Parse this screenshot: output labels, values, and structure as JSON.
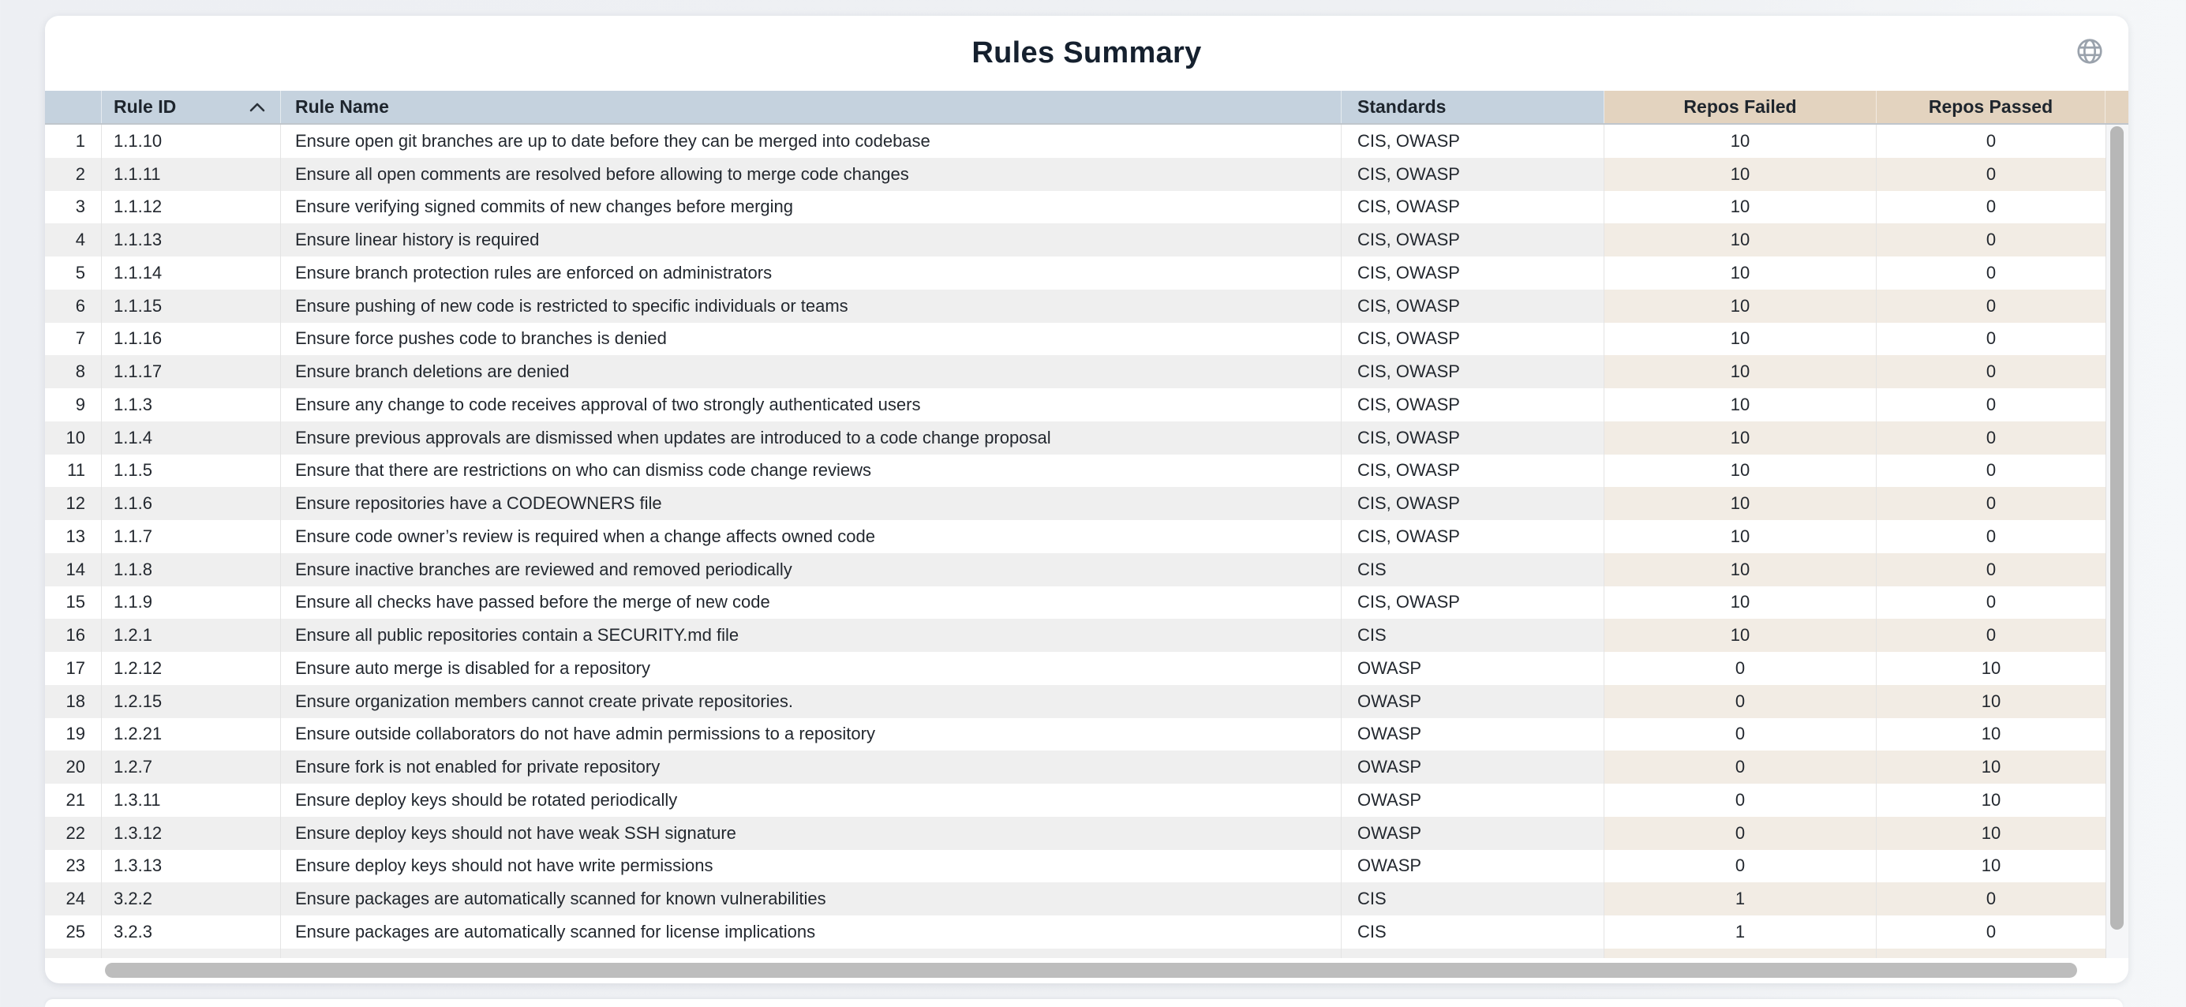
{
  "page": {
    "title": "Rules Summary"
  },
  "icons": {
    "globe": "globe-icon (world/web toggle, gray outline)",
    "sort_ascending": "chevron-up"
  },
  "colors": {
    "header_blue": "#c5d2de",
    "header_tan": "#e3d3bf",
    "stripe_gray": "#efefef",
    "stripe_beige": "#f2ece4",
    "title_text": "#15202e",
    "cell_text": "#23282f",
    "card_bg": "#ffffff",
    "page_bg": "#eef0f3",
    "scrollbar_thumb": "#b7b7b7"
  },
  "table": {
    "columns": [
      {
        "key": "num",
        "label": ""
      },
      {
        "key": "rule_id",
        "label": "Rule ID",
        "sort": "ascending"
      },
      {
        "key": "rule_name",
        "label": "Rule Name"
      },
      {
        "key": "standards",
        "label": "Standards"
      },
      {
        "key": "repos_failed",
        "label": "Repos Failed"
      },
      {
        "key": "repos_passed",
        "label": "Repos Passed"
      }
    ],
    "rows": [
      {
        "num": "1",
        "rule_id": "1.1.10",
        "rule_name": "Ensure open git branches are up to date before they can be merged into codebase",
        "standards": "CIS, OWASP",
        "repos_failed": "10",
        "repos_passed": "0"
      },
      {
        "num": "2",
        "rule_id": "1.1.11",
        "rule_name": "Ensure all open comments are resolved before allowing to merge code changes",
        "standards": "CIS, OWASP",
        "repos_failed": "10",
        "repos_passed": "0"
      },
      {
        "num": "3",
        "rule_id": "1.1.12",
        "rule_name": "Ensure verifying signed commits of new changes before merging",
        "standards": "CIS, OWASP",
        "repos_failed": "10",
        "repos_passed": "0"
      },
      {
        "num": "4",
        "rule_id": "1.1.13",
        "rule_name": "Ensure linear history is required",
        "standards": "CIS, OWASP",
        "repos_failed": "10",
        "repos_passed": "0"
      },
      {
        "num": "5",
        "rule_id": "1.1.14",
        "rule_name": "Ensure branch protection rules are enforced on administrators",
        "standards": "CIS, OWASP",
        "repos_failed": "10",
        "repos_passed": "0"
      },
      {
        "num": "6",
        "rule_id": "1.1.15",
        "rule_name": "Ensure pushing of new code is restricted to specific individuals or teams",
        "standards": "CIS, OWASP",
        "repos_failed": "10",
        "repos_passed": "0"
      },
      {
        "num": "7",
        "rule_id": "1.1.16",
        "rule_name": "Ensure force pushes code to branches is denied",
        "standards": "CIS, OWASP",
        "repos_failed": "10",
        "repos_passed": "0"
      },
      {
        "num": "8",
        "rule_id": "1.1.17",
        "rule_name": "Ensure branch deletions are denied",
        "standards": "CIS, OWASP",
        "repos_failed": "10",
        "repos_passed": "0"
      },
      {
        "num": "9",
        "rule_id": "1.1.3",
        "rule_name": "Ensure any change to code receives approval of two strongly authenticated users",
        "standards": "CIS, OWASP",
        "repos_failed": "10",
        "repos_passed": "0"
      },
      {
        "num": "10",
        "rule_id": "1.1.4",
        "rule_name": "Ensure previous approvals are dismissed when updates are introduced to a code change proposal",
        "standards": "CIS, OWASP",
        "repos_failed": "10",
        "repos_passed": "0"
      },
      {
        "num": "11",
        "rule_id": "1.1.5",
        "rule_name": "Ensure that there are restrictions on who can dismiss code change reviews",
        "standards": "CIS, OWASP",
        "repos_failed": "10",
        "repos_passed": "0"
      },
      {
        "num": "12",
        "rule_id": "1.1.6",
        "rule_name": "Ensure repositories have a CODEOWNERS file",
        "standards": "CIS, OWASP",
        "repos_failed": "10",
        "repos_passed": "0"
      },
      {
        "num": "13",
        "rule_id": "1.1.7",
        "rule_name": "Ensure code owner’s review is required when a change affects owned code",
        "standards": "CIS, OWASP",
        "repos_failed": "10",
        "repos_passed": "0"
      },
      {
        "num": "14",
        "rule_id": "1.1.8",
        "rule_name": "Ensure inactive branches are reviewed and removed periodically",
        "standards": "CIS",
        "repos_failed": "10",
        "repos_passed": "0"
      },
      {
        "num": "15",
        "rule_id": "1.1.9",
        "rule_name": "Ensure all checks have passed before the merge of new code",
        "standards": "CIS, OWASP",
        "repos_failed": "10",
        "repos_passed": "0"
      },
      {
        "num": "16",
        "rule_id": "1.2.1",
        "rule_name": "Ensure all public repositories contain a SECURITY.md file",
        "standards": "CIS",
        "repos_failed": "10",
        "repos_passed": "0"
      },
      {
        "num": "17",
        "rule_id": "1.2.12",
        "rule_name": "Ensure auto merge is disabled for a repository",
        "standards": "OWASP",
        "repos_failed": "0",
        "repos_passed": "10"
      },
      {
        "num": "18",
        "rule_id": "1.2.15",
        "rule_name": "Ensure organization members cannot create private repositories.",
        "standards": "OWASP",
        "repos_failed": "0",
        "repos_passed": "10"
      },
      {
        "num": "19",
        "rule_id": "1.2.21",
        "rule_name": "Ensure outside collaborators do not have admin permissions to a repository",
        "standards": "OWASP",
        "repos_failed": "0",
        "repos_passed": "10"
      },
      {
        "num": "20",
        "rule_id": "1.2.7",
        "rule_name": "Ensure fork is not enabled for private repository",
        "standards": "OWASP",
        "repos_failed": "0",
        "repos_passed": "10"
      },
      {
        "num": "21",
        "rule_id": "1.3.11",
        "rule_name": "Ensure deploy keys should be rotated periodically",
        "standards": "OWASP",
        "repos_failed": "0",
        "repos_passed": "10"
      },
      {
        "num": "22",
        "rule_id": "1.3.12",
        "rule_name": "Ensure deploy keys should not have weak SSH signature",
        "standards": "OWASP",
        "repos_failed": "0",
        "repos_passed": "10"
      },
      {
        "num": "23",
        "rule_id": "1.3.13",
        "rule_name": "Ensure deploy keys should not have write permissions",
        "standards": "OWASP",
        "repos_failed": "0",
        "repos_passed": "10"
      },
      {
        "num": "24",
        "rule_id": "3.2.2",
        "rule_name": "Ensure packages are automatically scanned for known vulnerabilities",
        "standards": "CIS",
        "repos_failed": "1",
        "repos_passed": "0"
      },
      {
        "num": "25",
        "rule_id": "3.2.3",
        "rule_name": "Ensure packages are automatically scanned for license implications",
        "standards": "CIS",
        "repos_failed": "1",
        "repos_passed": "0"
      }
    ]
  }
}
